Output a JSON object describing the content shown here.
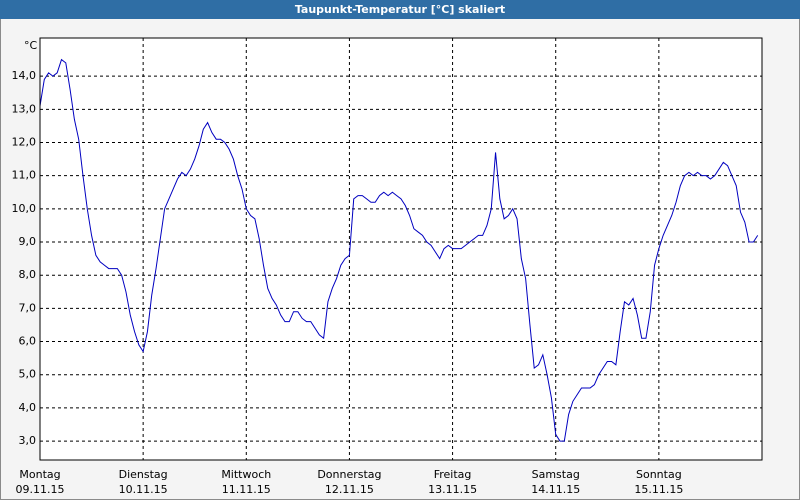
{
  "chart_data": {
    "type": "line",
    "title": "Taupunkt-Temperatur [°C] skaliert",
    "y_label": "°C",
    "x": [
      0,
      1,
      2,
      3,
      4,
      5,
      6,
      7,
      8,
      9,
      10,
      11,
      12,
      13,
      14,
      15,
      16,
      17,
      18,
      19,
      20,
      21,
      22,
      23,
      24,
      25,
      26,
      27,
      28,
      29,
      30,
      31,
      32,
      33,
      34,
      35,
      36,
      37,
      38,
      39,
      40,
      41,
      42,
      43,
      44,
      45,
      46,
      47,
      48,
      49,
      50,
      51,
      52,
      53,
      54,
      55,
      56,
      57,
      58,
      59,
      60,
      61,
      62,
      63,
      64,
      65,
      66,
      67,
      68,
      69,
      70,
      71,
      72,
      73,
      74,
      75,
      76,
      77,
      78,
      79,
      80,
      81,
      82,
      83,
      84,
      85,
      86,
      87,
      88,
      89,
      90,
      91,
      92,
      93,
      94,
      95,
      96,
      97,
      98,
      99,
      100,
      101,
      102,
      103,
      104,
      105,
      106,
      107,
      108,
      109,
      110,
      111,
      112,
      113,
      114,
      115,
      116,
      117,
      118,
      119,
      120,
      121,
      122,
      123,
      124,
      125,
      126,
      127,
      128,
      129,
      130,
      131,
      132,
      133,
      134,
      135,
      136,
      137,
      138,
      139,
      140,
      141,
      142,
      143,
      144,
      145,
      146,
      147,
      148,
      149,
      150,
      151,
      152,
      153,
      154,
      155,
      156,
      157,
      158,
      159,
      160,
      161,
      162,
      163,
      164,
      165,
      166,
      167
    ],
    "series": [
      {
        "name": "Taupunkt",
        "color": "#0000c0",
        "values": [
          13.1,
          13.9,
          14.1,
          14.0,
          14.1,
          14.5,
          14.4,
          13.6,
          12.7,
          12.1,
          11.0,
          10.0,
          9.2,
          8.6,
          8.4,
          8.3,
          8.2,
          8.2,
          8.2,
          8.0,
          7.5,
          6.8,
          6.3,
          5.9,
          5.7,
          6.3,
          7.4,
          8.2,
          9.1,
          10.0,
          10.3,
          10.6,
          10.9,
          11.1,
          11.0,
          11.2,
          11.5,
          11.9,
          12.4,
          12.6,
          12.3,
          12.1,
          12.1,
          12.0,
          11.8,
          11.5,
          11.0,
          10.6,
          10.0,
          9.8,
          9.7,
          9.1,
          8.3,
          7.6,
          7.3,
          7.1,
          6.8,
          6.6,
          6.6,
          6.9,
          6.9,
          6.7,
          6.6,
          6.6,
          6.4,
          6.2,
          6.1,
          7.2,
          7.6,
          7.9,
          8.3,
          8.5,
          8.6,
          10.3,
          10.4,
          10.4,
          10.3,
          10.2,
          10.2,
          10.4,
          10.5,
          10.4,
          10.5,
          10.4,
          10.3,
          10.1,
          9.8,
          9.4,
          9.3,
          9.2,
          9.0,
          8.9,
          8.7,
          8.5,
          8.8,
          8.9,
          8.8,
          8.8,
          8.8,
          8.9,
          9.0,
          9.1,
          9.2,
          9.2,
          9.5,
          10.0,
          11.7,
          10.3,
          9.7,
          9.8,
          10.0,
          9.7,
          8.5,
          7.9,
          6.5,
          5.2,
          5.3,
          5.6,
          5.0,
          4.3,
          3.2,
          3.0,
          3.0,
          3.8,
          4.2,
          4.4,
          4.6,
          4.6,
          4.6,
          4.7,
          5.0,
          5.2,
          5.4,
          5.4,
          5.3,
          6.3,
          7.2,
          7.1,
          7.3,
          6.8,
          6.1,
          6.1,
          6.9,
          8.3,
          8.8,
          9.2,
          9.5,
          9.8,
          10.2,
          10.7,
          11.0,
          11.1,
          11.0,
          11.1,
          11.0,
          11.0,
          10.9,
          11.0,
          11.2,
          11.4,
          11.3,
          11.0,
          10.7,
          9.9,
          9.6,
          9.0,
          9.0,
          9.2
        ]
      }
    ],
    "xlim": [
      0,
      168
    ],
    "xticks": [
      {
        "value": 0,
        "label": "Montag"
      },
      {
        "value": 24,
        "label": "Dienstag"
      },
      {
        "value": 48,
        "label": "Mittwoch"
      },
      {
        "value": 72,
        "label": "Donnerstag"
      },
      {
        "value": 96,
        "label": "Freitag"
      },
      {
        "value": 120,
        "label": "Samstag"
      },
      {
        "value": 144,
        "label": "Sonntag"
      }
    ],
    "xtick_dates": [
      "09.11.15",
      "10.11.15",
      "11.11.15",
      "12.11.15",
      "13.11.15",
      "14.11.15",
      "15.11.15"
    ],
    "ylim": [
      2.43,
      15.15
    ],
    "yticks": [
      {
        "value": 3,
        "label": "3,0"
      },
      {
        "value": 4,
        "label": "4,0"
      },
      {
        "value": 5,
        "label": "5,0"
      },
      {
        "value": 6,
        "label": "6,0"
      },
      {
        "value": 7,
        "label": "7,0"
      },
      {
        "value": 8,
        "label": "8,0"
      },
      {
        "value": 9,
        "label": "9,0"
      },
      {
        "value": 10,
        "label": "10,0"
      },
      {
        "value": 11,
        "label": "11,0"
      },
      {
        "value": 12,
        "label": "12,0"
      },
      {
        "value": 13,
        "label": "13,0"
      },
      {
        "value": 14,
        "label": "14,0"
      }
    ],
    "grid": true
  }
}
